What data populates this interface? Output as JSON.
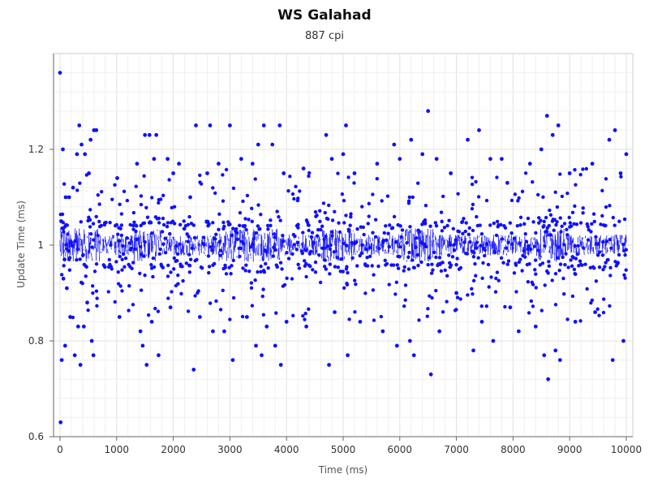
{
  "chart_data": {
    "type": "scatter",
    "title": "WS Galahad",
    "subtitle": "887 cpi",
    "xlabel": "Time (ms)",
    "ylabel": "Update Time (ms)",
    "xlim": [
      0,
      10000
    ],
    "ylim": [
      0.6,
      1.4
    ],
    "x_ticks": [
      0,
      1000,
      2000,
      3000,
      4000,
      5000,
      6000,
      7000,
      8000,
      9000,
      10000
    ],
    "y_ticks": [
      0.6,
      0.8,
      1.0,
      1.2
    ],
    "y_tick_labels": [
      "0.6",
      "0.8",
      "1",
      "1.2"
    ],
    "grid": true,
    "series_color": "#1010ff",
    "series": [
      {
        "points": [
          [
            0,
            1.36
          ],
          [
            10,
            0.63
          ],
          [
            20,
            1.05
          ],
          [
            30,
            0.76
          ],
          [
            50,
            1.2
          ],
          [
            60,
            0.93
          ],
          [
            80,
            0.97
          ],
          [
            90,
            0.79
          ],
          [
            100,
            1.1
          ],
          [
            120,
            0.91
          ],
          [
            160,
            1.1
          ],
          [
            180,
            0.85
          ],
          [
            230,
            1.12
          ],
          [
            260,
            0.77
          ],
          [
            300,
            1.19
          ],
          [
            320,
            0.83
          ],
          [
            340,
            1.25
          ],
          [
            360,
            0.75
          ],
          [
            380,
            1.21
          ],
          [
            420,
            0.83
          ],
          [
            440,
            1.19
          ],
          [
            480,
            0.88
          ],
          [
            510,
            1.15
          ],
          [
            540,
            1.22
          ],
          [
            560,
            0.8
          ],
          [
            590,
            0.77
          ],
          [
            600,
            1.24
          ],
          [
            640,
            1.24
          ],
          [
            1010,
            1.14
          ],
          [
            1050,
            0.85
          ],
          [
            1360,
            1.17
          ],
          [
            1420,
            0.82
          ],
          [
            1460,
            0.79
          ],
          [
            1500,
            1.23
          ],
          [
            1530,
            0.75
          ],
          [
            1580,
            1.23
          ],
          [
            1620,
            0.84
          ],
          [
            1660,
            1.18
          ],
          [
            1700,
            1.23
          ],
          [
            1740,
            0.77
          ],
          [
            1900,
            1.18
          ],
          [
            1950,
            0.87
          ],
          [
            2000,
            1.15
          ],
          [
            2100,
            1.17
          ],
          [
            2300,
            1.1
          ],
          [
            2360,
            0.74
          ],
          [
            2400,
            1.25
          ],
          [
            2470,
            0.85
          ],
          [
            2600,
            1.15
          ],
          [
            2650,
            1.25
          ],
          [
            2700,
            0.82
          ],
          [
            2800,
            1.17
          ],
          [
            2900,
            0.82
          ],
          [
            3000,
            1.25
          ],
          [
            3050,
            0.76
          ],
          [
            3200,
            1.18
          ],
          [
            3300,
            0.85
          ],
          [
            3400,
            1.17
          ],
          [
            3460,
            0.79
          ],
          [
            3500,
            1.21
          ],
          [
            3560,
            0.77
          ],
          [
            3600,
            1.25
          ],
          [
            3650,
            0.83
          ],
          [
            3750,
            1.21
          ],
          [
            3800,
            0.79
          ],
          [
            3880,
            1.25
          ],
          [
            3900,
            0.75
          ],
          [
            3950,
            1.15
          ],
          [
            4000,
            0.84
          ],
          [
            4300,
            1.16
          ],
          [
            4350,
            0.83
          ],
          [
            4700,
            1.23
          ],
          [
            4750,
            0.75
          ],
          [
            4800,
            1.18
          ],
          [
            4850,
            0.86
          ],
          [
            5000,
            1.19
          ],
          [
            5050,
            1.25
          ],
          [
            5080,
            0.77
          ],
          [
            5200,
            1.15
          ],
          [
            5300,
            0.84
          ],
          [
            5600,
            1.17
          ],
          [
            5700,
            0.82
          ],
          [
            5900,
            1.21
          ],
          [
            5950,
            0.79
          ],
          [
            6000,
            1.18
          ],
          [
            6180,
            0.8
          ],
          [
            6200,
            1.22
          ],
          [
            6250,
            0.77
          ],
          [
            6400,
            1.19
          ],
          [
            6500,
            1.28
          ],
          [
            6550,
            0.73
          ],
          [
            6650,
            1.18
          ],
          [
            6700,
            0.82
          ],
          [
            6900,
            1.15
          ],
          [
            7000,
            0.9
          ],
          [
            7200,
            1.22
          ],
          [
            7300,
            0.78
          ],
          [
            7400,
            1.24
          ],
          [
            7450,
            0.84
          ],
          [
            7600,
            1.18
          ],
          [
            7650,
            0.8
          ],
          [
            7800,
            1.18
          ],
          [
            7900,
            1.13
          ],
          [
            7950,
            0.87
          ],
          [
            8100,
            0.82
          ],
          [
            8300,
            1.17
          ],
          [
            8400,
            0.83
          ],
          [
            8500,
            1.2
          ],
          [
            8550,
            0.77
          ],
          [
            8600,
            1.27
          ],
          [
            8620,
            0.72
          ],
          [
            8700,
            1.23
          ],
          [
            8750,
            0.78
          ],
          [
            8800,
            1.25
          ],
          [
            8830,
            0.76
          ],
          [
            9000,
            1.15
          ],
          [
            9100,
            0.84
          ],
          [
            9400,
            1.17
          ],
          [
            9450,
            0.86
          ],
          [
            9700,
            1.22
          ],
          [
            9760,
            0.76
          ],
          [
            9800,
            1.24
          ],
          [
            9900,
            1.15
          ],
          [
            9950,
            0.8
          ],
          [
            10000,
            1.19
          ]
        ],
        "dense_band": {
          "center": 1.0,
          "note": "dense cluster of points with line segments between roughly 0.96 and 1.04 across the whole time range"
        }
      }
    ]
  }
}
